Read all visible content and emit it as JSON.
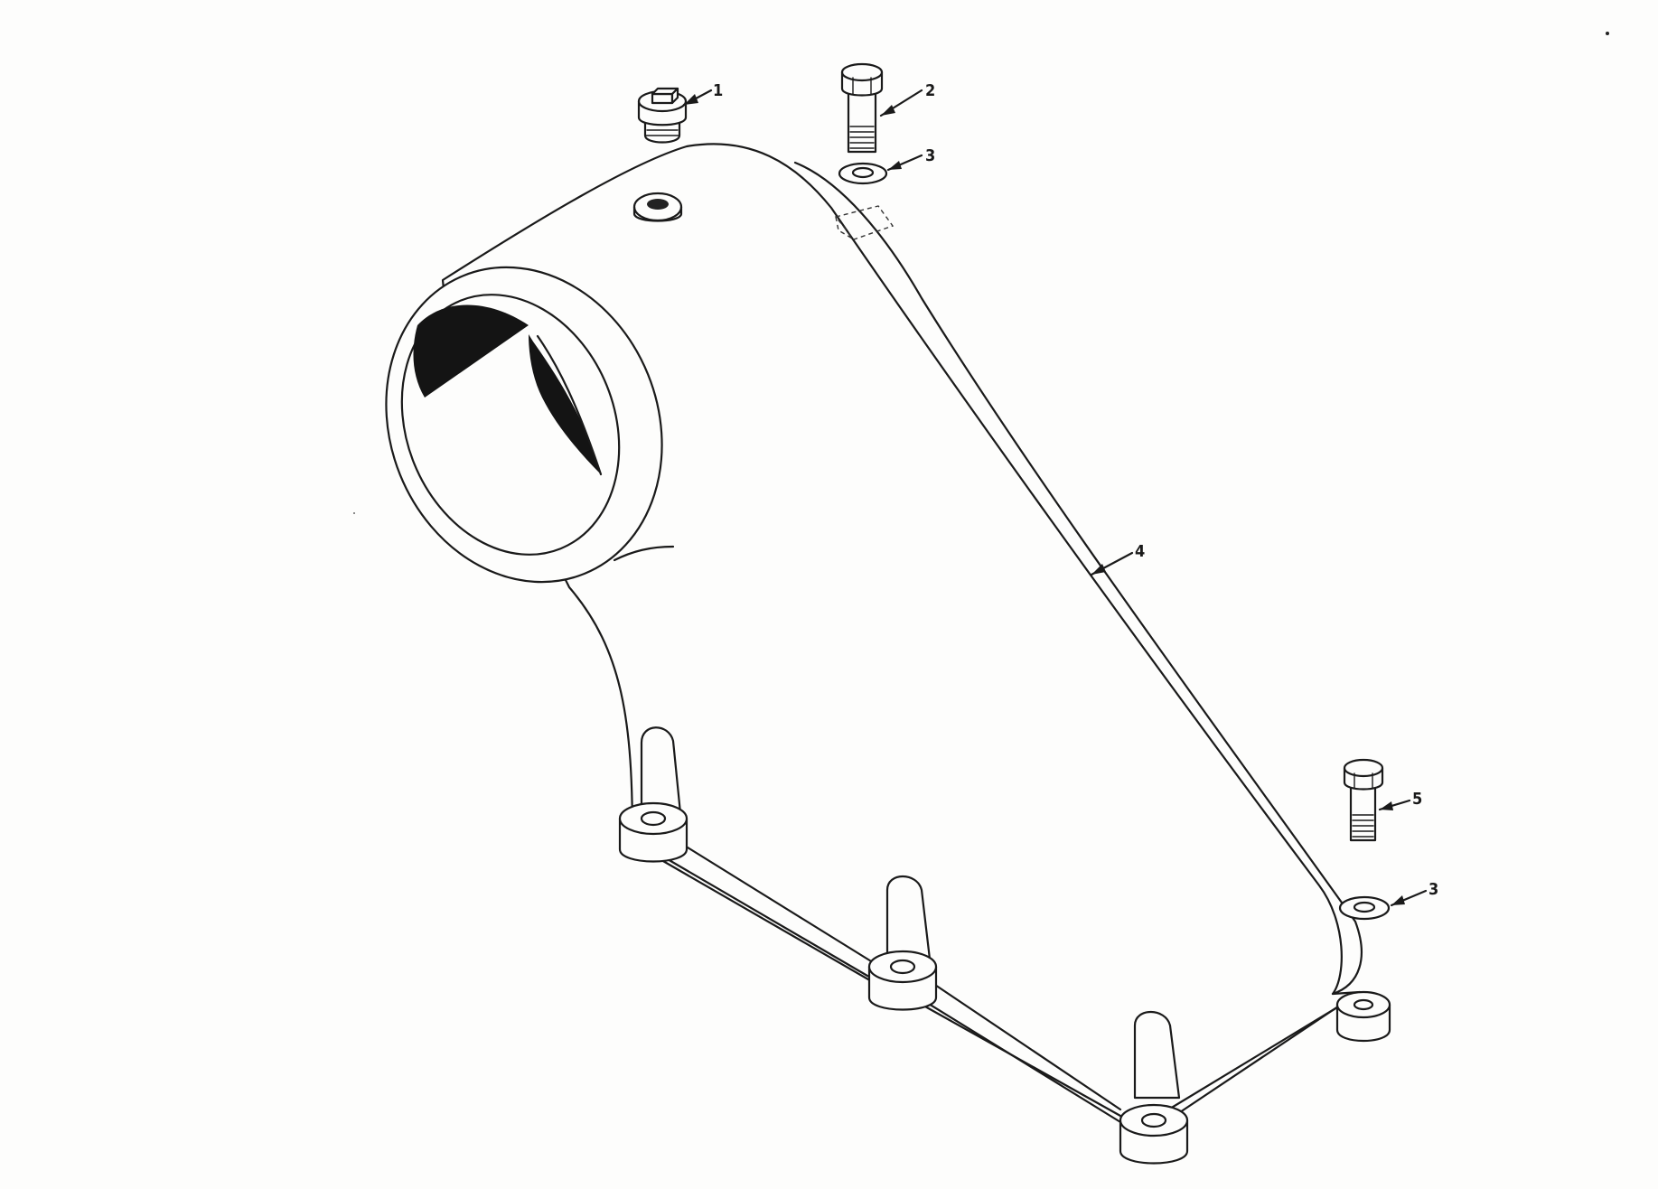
{
  "callouts": [
    {
      "id": "1",
      "label": "1",
      "part": "plug"
    },
    {
      "id": "2",
      "label": "2",
      "part": "bolt"
    },
    {
      "id": "3a",
      "label": "3",
      "part": "washer"
    },
    {
      "id": "4",
      "label": "4",
      "part": "housing"
    },
    {
      "id": "5",
      "label": "5",
      "part": "bolt"
    },
    {
      "id": "3b",
      "label": "3",
      "part": "washer"
    }
  ],
  "colors": {
    "line": "#1a1a1a",
    "paper": "#fdfdfc",
    "shadow": "#141414"
  }
}
